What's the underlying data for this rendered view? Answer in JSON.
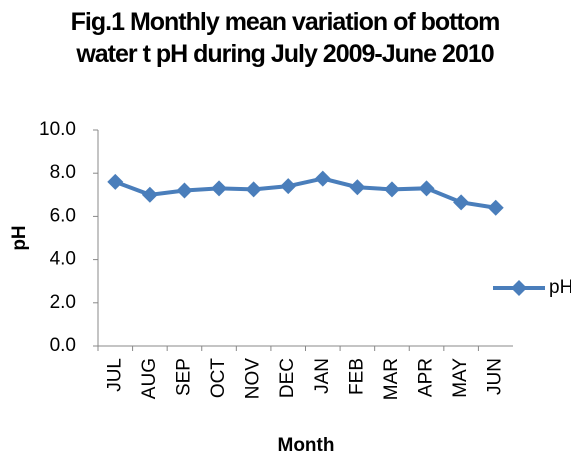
{
  "chart_data": {
    "type": "line",
    "title": "Fig.1 Monthly mean variation of bottom water t pH during July 2009-June 2010",
    "x_label": "Month",
    "y_label": "pH",
    "categories": [
      "JUL",
      "AUG",
      "SEP",
      "OCT",
      "NOV",
      "DEC",
      "JAN",
      "FEB",
      "MAR",
      "APR",
      "MAY",
      "JUN"
    ],
    "series": [
      {
        "name": "pH",
        "color": "#4a7ebb",
        "values": [
          7.6,
          7.0,
          7.2,
          7.3,
          7.25,
          7.4,
          7.75,
          7.35,
          7.25,
          7.3,
          6.65,
          6.4
        ]
      }
    ],
    "ylim": [
      0,
      10
    ],
    "yticks": [
      {
        "value": 0,
        "label": "0.0"
      },
      {
        "value": 2,
        "label": "2.0"
      },
      {
        "value": 4,
        "label": "4.0"
      },
      {
        "value": 6,
        "label": "6.0"
      },
      {
        "value": 8,
        "label": "8.0"
      },
      {
        "value": 10,
        "label": "10.0"
      }
    ],
    "grid": false,
    "legend": "right"
  }
}
